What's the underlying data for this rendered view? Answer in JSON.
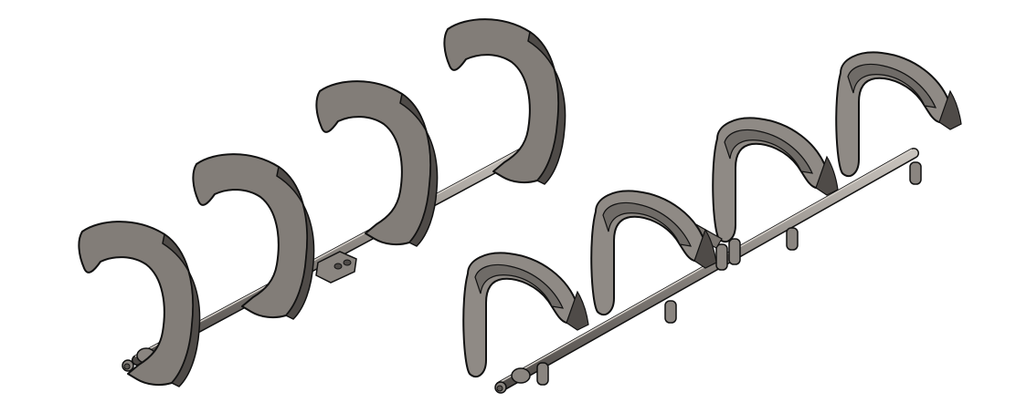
{
  "colors": {
    "background": "#ffffff",
    "metal_face": "#827d78",
    "metal_shadow": "#5a5652",
    "metal_highlight": "#b4aea8",
    "outline": "#111111"
  },
  "assemblies": [
    {
      "name": "flat-plate-shaft-assembly",
      "plate_count": 4,
      "plate_style": "solid-flat-curved-plate"
    },
    {
      "name": "framed-hook-shaft-assembly",
      "plate_count": 4,
      "plate_style": "hollow-framed-hook"
    }
  ]
}
